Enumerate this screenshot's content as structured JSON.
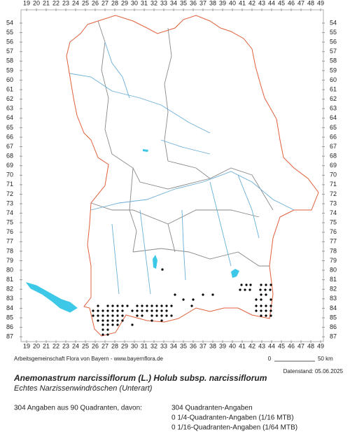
{
  "map": {
    "column_labels": [
      19,
      20,
      21,
      22,
      23,
      24,
      25,
      26,
      27,
      28,
      29,
      30,
      31,
      32,
      33,
      34,
      35,
      36,
      37,
      38,
      39,
      40,
      41,
      42,
      43,
      44,
      45,
      46,
      47,
      48,
      49
    ],
    "row_labels": [
      54,
      55,
      56,
      57,
      58,
      59,
      60,
      61,
      62,
      63,
      64,
      65,
      66,
      67,
      68,
      69,
      70,
      71,
      72,
      73,
      74,
      75,
      76,
      77,
      78,
      79,
      80,
      81,
      82,
      83,
      84,
      85,
      86,
      87
    ],
    "credit": "Arbeitsgemeinschaft Flora von Bayern - www.bayernflora.de",
    "scale": {
      "start": "0",
      "end": "50 km"
    },
    "date": "Datenstand: 05.06.2025",
    "title": "Anemonastrum narcissiflorum (L.) Holub subsp. narcissiflorum",
    "subtitle": "Echtes Narzissenwindröschen (Unterart)",
    "summary": "304 Angaben aus 90 Quadranten, davon:",
    "breakdown": [
      "304 Quadranten-Angaben",
      "0 1/4-Quadranten-Angaben (1/16 MTB)",
      "0 1/16-Quadranten-Angaben (1/64 MTB)"
    ]
  }
}
